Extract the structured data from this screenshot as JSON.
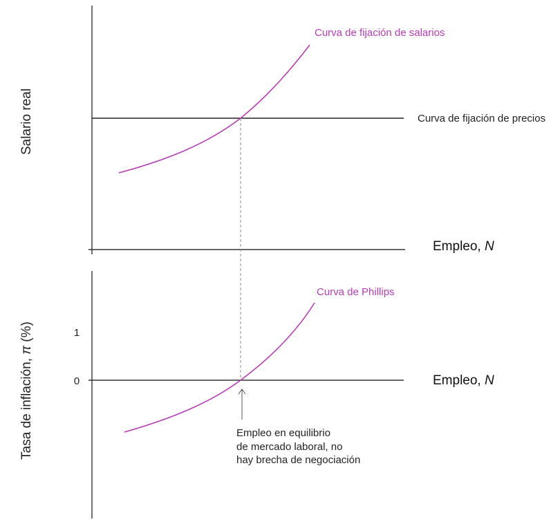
{
  "top_panel": {
    "y_axis_label": "Salario real",
    "x_axis_label_text": "Empleo, ",
    "x_axis_label_var": "N",
    "wage_curve_label": "Curva de fijación de salarios",
    "price_curve_label": "Curva de fijación de precios"
  },
  "bottom_panel": {
    "y_axis_label_text": "Tasa de inflación, ",
    "y_axis_label_var": "π",
    "y_axis_label_unit": " (%)",
    "x_axis_label_text": "Empleo, ",
    "x_axis_label_var": "N",
    "tick_labels": [
      "1",
      "0"
    ],
    "phillips_curve_label": "Curva de Phillips",
    "annotation_lines": [
      "Empleo en equilibrio",
      "de mercado laboral, no",
      "hay brecha de negociación"
    ]
  },
  "colors": {
    "curve": "#b63bb6",
    "axes": "#333333",
    "guide": "#8a8a8a"
  }
}
